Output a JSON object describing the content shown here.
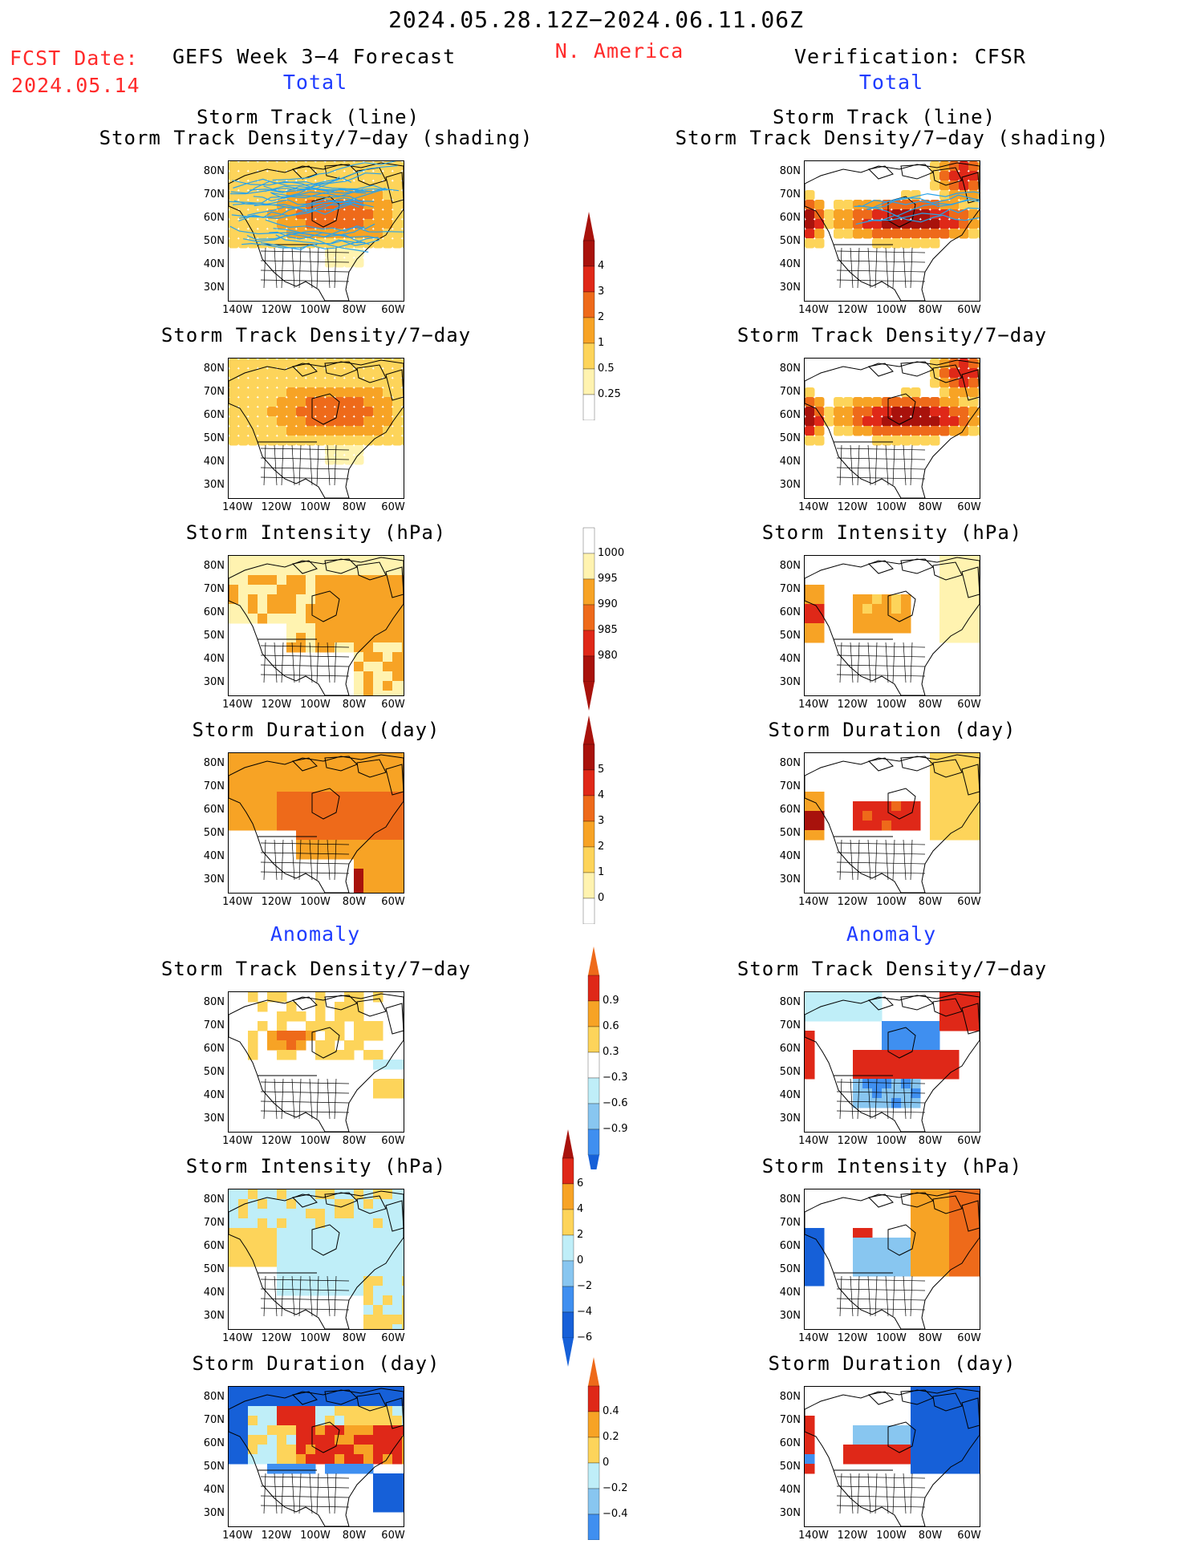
{
  "header": {
    "date_range": "2024.05.28.12Z−2024.06.11.06Z",
    "fcst_label": "FCST Date:",
    "fcst_date": "2024.05.14",
    "model": "GEFS Week 3−4 Forecast",
    "region": "N. America",
    "verification": "Verification: CFSR"
  },
  "sections": {
    "total": "Total",
    "anomaly": "Anomaly"
  },
  "panel_titles": {
    "track_line": "Storm Track (line)",
    "track_density_shading": "Storm Track Density/7−day (shading)",
    "track_density": "Storm Track Density/7−day",
    "intensity": "Storm Intensity (hPa)",
    "duration": "Storm Duration (day)"
  },
  "axes": {
    "lat_labels": [
      "80N",
      "70N",
      "60N",
      "50N",
      "40N",
      "30N"
    ],
    "lon_labels": [
      "140W",
      "120W",
      "100W",
      "80W",
      "60W"
    ]
  },
  "colorbars": {
    "density_total": [
      "4",
      "3",
      "2",
      "1",
      "0.5",
      "0.25"
    ],
    "intensity_total": [
      "1000",
      "995",
      "990",
      "985",
      "980"
    ],
    "duration_total": [
      "5",
      "4",
      "3",
      "2",
      "1",
      "0"
    ],
    "density_anom": [
      "0.9",
      "0.6",
      "0.3",
      "−0.3",
      "−0.6",
      "−0.9"
    ],
    "intensity_anom": [
      "6",
      "4",
      "2",
      "0",
      "−2",
      "−4",
      "−6"
    ],
    "duration_anom": [
      "0.4",
      "0.2",
      "0",
      "−0.2",
      "−0.4"
    ]
  },
  "colors": {
    "pale_yellow": "#fff3b0",
    "yellow": "#fdd45a",
    "orange": "#f7a325",
    "dark_orange": "#ee6a1a",
    "red": "#df2818",
    "dark_red": "#a8120c",
    "light_blue": "#bfeef8",
    "sky_blue": "#88c6f0",
    "mid_blue": "#3f8ff0",
    "dark_blue": "#1660d8",
    "track_line": "#2aa2e8"
  }
}
